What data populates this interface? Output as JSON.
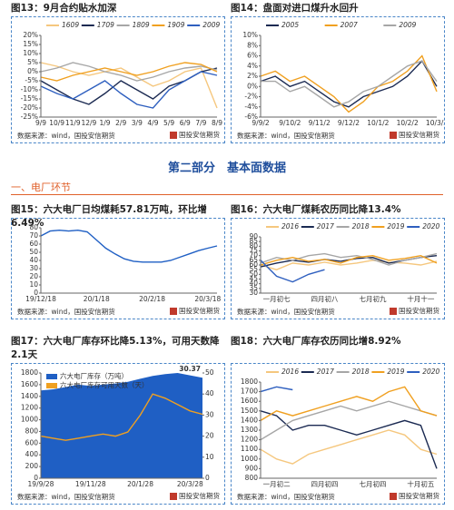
{
  "section_title": "第二部分　基本面数据",
  "subsection": "一、电厂环节",
  "source": "数据来源：wind，国投安信期货",
  "logo": "国投安信期货",
  "chart_data": [
    {
      "type": "line",
      "title": "图13：9月合约贴水加深",
      "legend": "top",
      "categories": [
        "9/9",
        "10/9",
        "11/9",
        "12/9",
        "1/9",
        "2/9",
        "3/9",
        "4/9",
        "5/9",
        "6/9",
        "7/9",
        "8/9"
      ],
      "ylim": [
        -25,
        20
      ],
      "yticks": [
        {
          "value": -25,
          "label": "-25%"
        },
        {
          "value": -20,
          "label": "-20%"
        },
        {
          "value": -15,
          "label": "-15%"
        },
        {
          "value": -10,
          "label": "-10%"
        },
        {
          "value": -5,
          "label": "-5%"
        },
        {
          "value": 0,
          "label": "0%"
        },
        {
          "value": 5,
          "label": "5%"
        },
        {
          "value": 10,
          "label": "10%"
        },
        {
          "value": 15,
          "label": "15%"
        },
        {
          "value": 20,
          "label": "20%"
        }
      ],
      "series": [
        {
          "name": "1609",
          "color": "#f5c77e",
          "values": [
            5,
            3,
            0,
            -2,
            0,
            2,
            -3,
            -8,
            -5,
            0,
            2,
            -20
          ]
        },
        {
          "name": "1709",
          "color": "#1b2a52",
          "values": [
            -5,
            -10,
            -15,
            -18,
            -12,
            -5,
            -10,
            -15,
            -8,
            -5,
            0,
            2
          ]
        },
        {
          "name": "1809",
          "color": "#a6a6a6",
          "values": [
            0,
            2,
            5,
            3,
            0,
            -2,
            -5,
            -3,
            0,
            2,
            3,
            1
          ]
        },
        {
          "name": "1909",
          "color": "#f0a020",
          "values": [
            -3,
            -5,
            -2,
            0,
            2,
            0,
            -2,
            0,
            3,
            5,
            4,
            0
          ]
        },
        {
          "name": "2009",
          "color": "#2e5fbf",
          "values": [
            -8,
            -12,
            -15,
            -10,
            -5,
            -12,
            -18,
            -20,
            -10,
            -5,
            0,
            -2
          ]
        }
      ]
    },
    {
      "type": "line",
      "title": "图14：盘面对进口煤升水回升",
      "legend": "top",
      "categories": [
        "9/9/2",
        null,
        "9/10/2",
        null,
        "9/11/2",
        null,
        "9/12/2",
        null,
        "10/1/2",
        null,
        "10/2/2",
        null,
        "10/3/2"
      ],
      "ylim": [
        -6,
        10
      ],
      "yticks": [
        {
          "value": -6,
          "label": "-6%"
        },
        {
          "value": -4,
          "label": "-4%"
        },
        {
          "value": -2,
          "label": "-2%"
        },
        {
          "value": 0,
          "label": "0%"
        },
        {
          "value": 2,
          "label": "2%"
        },
        {
          "value": 4,
          "label": "4%"
        },
        {
          "value": 6,
          "label": "6%"
        },
        {
          "value": 8,
          "label": "8%"
        },
        {
          "value": 10,
          "label": "10%"
        }
      ],
      "series": [
        {
          "name": "2005",
          "color": "#1b2a52",
          "values": [
            1,
            2,
            0,
            1,
            -1,
            -3,
            -4,
            -2,
            -1,
            0,
            2,
            5,
            0
          ]
        },
        {
          "name": "2007",
          "color": "#f0a020",
          "values": [
            2,
            3,
            1,
            2,
            0,
            -2,
            -5,
            -3,
            0,
            1,
            3,
            6,
            -1
          ]
        },
        {
          "name": "2009",
          "color": "#a6a6a6",
          "values": [
            1,
            1,
            -1,
            0,
            -2,
            -4,
            -3,
            -1,
            0,
            2,
            4,
            5,
            1
          ]
        }
      ]
    },
    {
      "type": "line",
      "title": "图15：六大电厂日均煤耗57.81万吨，环比增6.49%",
      "categories": [
        "19/12/18",
        null,
        null,
        null,
        null,
        null,
        "20/1/18",
        null,
        null,
        null,
        null,
        null,
        "20/2/18",
        null,
        null,
        null,
        null,
        null,
        "20/3/18",
        null
      ],
      "values": [
        70,
        76,
        77,
        76,
        77,
        75,
        65,
        55,
        48,
        42,
        39,
        38,
        38,
        38,
        40,
        44,
        48,
        52,
        55,
        57.81
      ],
      "color": "#1f5fc4",
      "ylim": [
        0,
        80
      ],
      "yticks": [
        0,
        10,
        20,
        30,
        40,
        50,
        60,
        70,
        80
      ]
    },
    {
      "type": "line",
      "title": "图16：六大电厂煤耗农历同比降13.4%",
      "legend": "top",
      "categories": [
        null,
        "一月初七",
        null,
        null,
        "四月初八",
        null,
        null,
        "七月初九",
        null,
        null,
        "十月十一",
        null
      ],
      "ylim": [
        30,
        90
      ],
      "yticks": [
        30,
        35,
        40,
        45,
        50,
        55,
        60,
        65,
        70,
        75,
        80,
        85,
        90
      ],
      "series": [
        {
          "name": "2016",
          "color": "#f5c77e",
          "values": [
            60,
            55,
            62,
            60,
            63,
            60,
            62,
            65,
            63,
            62,
            60,
            64
          ]
        },
        {
          "name": "2017",
          "color": "#1b2a52",
          "values": [
            58,
            62,
            65,
            63,
            66,
            64,
            67,
            68,
            62,
            65,
            68,
            70
          ]
        },
        {
          "name": "2018",
          "color": "#a6a6a6",
          "values": [
            62,
            68,
            65,
            70,
            72,
            68,
            70,
            66,
            60,
            65,
            68,
            72
          ]
        },
        {
          "name": "2019",
          "color": "#f0a020",
          "values": [
            60,
            65,
            68,
            64,
            66,
            62,
            68,
            70,
            65,
            67,
            70,
            62
          ]
        },
        {
          "name": "2020",
          "color": "#2e5fbf",
          "values": [
            65,
            48,
            42,
            50,
            55,
            null,
            null,
            null,
            null,
            null,
            null,
            null
          ]
        }
      ]
    },
    {
      "type": "combo",
      "title": "图17：六大电厂库存环比降5.13%，可用天数降2.1天",
      "legend": "upper left",
      "categories": [
        "19/9/28",
        null,
        null,
        null,
        "19/11/28",
        null,
        null,
        null,
        "20/1/28",
        null,
        null,
        null,
        "20/3/28",
        null
      ],
      "ylim": [
        0,
        1800
      ],
      "yticks": [
        0,
        200,
        400,
        600,
        800,
        1000,
        1200,
        1400,
        1600,
        1800
      ],
      "y2lim": [
        0,
        50
      ],
      "y2ticks": [
        0,
        10,
        20,
        30,
        40,
        50
      ],
      "series": [
        {
          "name": "六大电厂库存（万吨）",
          "color": "#1f5fc4",
          "mark": "area",
          "values": [
            1500,
            1520,
            1560,
            1600,
            1580,
            1600,
            1620,
            1650,
            1700,
            1750,
            1780,
            1800,
            1760,
            1720
          ]
        },
        {
          "name": "六大电厂库存可用天数（天）",
          "color": "#f0a020",
          "mark": "line",
          "axis": "y2",
          "values": [
            20,
            19,
            18,
            19,
            20,
            21,
            20,
            22,
            30,
            40,
            38,
            35,
            32,
            30.37
          ]
        }
      ]
    },
    {
      "type": "line",
      "title": "图18：六大电厂库存农历同比增8.92%",
      "legend": "top",
      "categories": [
        null,
        "一月初二",
        null,
        null,
        "四月初四",
        null,
        null,
        "七月初四",
        null,
        null,
        "十月初五",
        null
      ],
      "ylim": [
        800,
        1800
      ],
      "yticks": [
        800,
        900,
        1000,
        1100,
        1200,
        1300,
        1400,
        1500,
        1600,
        1700,
        1800
      ],
      "series": [
        {
          "name": "2016",
          "color": "#f5c77e",
          "values": [
            1100,
            1000,
            950,
            1050,
            1100,
            1150,
            1200,
            1250,
            1300,
            1250,
            1100,
            1050
          ]
        },
        {
          "name": "2017",
          "color": "#1b2a52",
          "values": [
            1500,
            1450,
            1300,
            1350,
            1350,
            1300,
            1250,
            1300,
            1350,
            1400,
            1350,
            900
          ]
        },
        {
          "name": "2018",
          "color": "#a6a6a6",
          "values": [
            1200,
            1300,
            1400,
            1450,
            1500,
            1550,
            1500,
            1550,
            1600,
            1550,
            1500,
            1450
          ]
        },
        {
          "name": "2019",
          "color": "#f0a020",
          "values": [
            1400,
            1500,
            1450,
            1500,
            1550,
            1600,
            1650,
            1600,
            1700,
            1750,
            1500,
            1450
          ]
        },
        {
          "name": "2020",
          "color": "#2e5fbf",
          "values": [
            1700,
            1750,
            1720,
            null,
            null,
            null,
            null,
            null,
            null,
            null,
            null,
            null
          ]
        }
      ]
    }
  ]
}
